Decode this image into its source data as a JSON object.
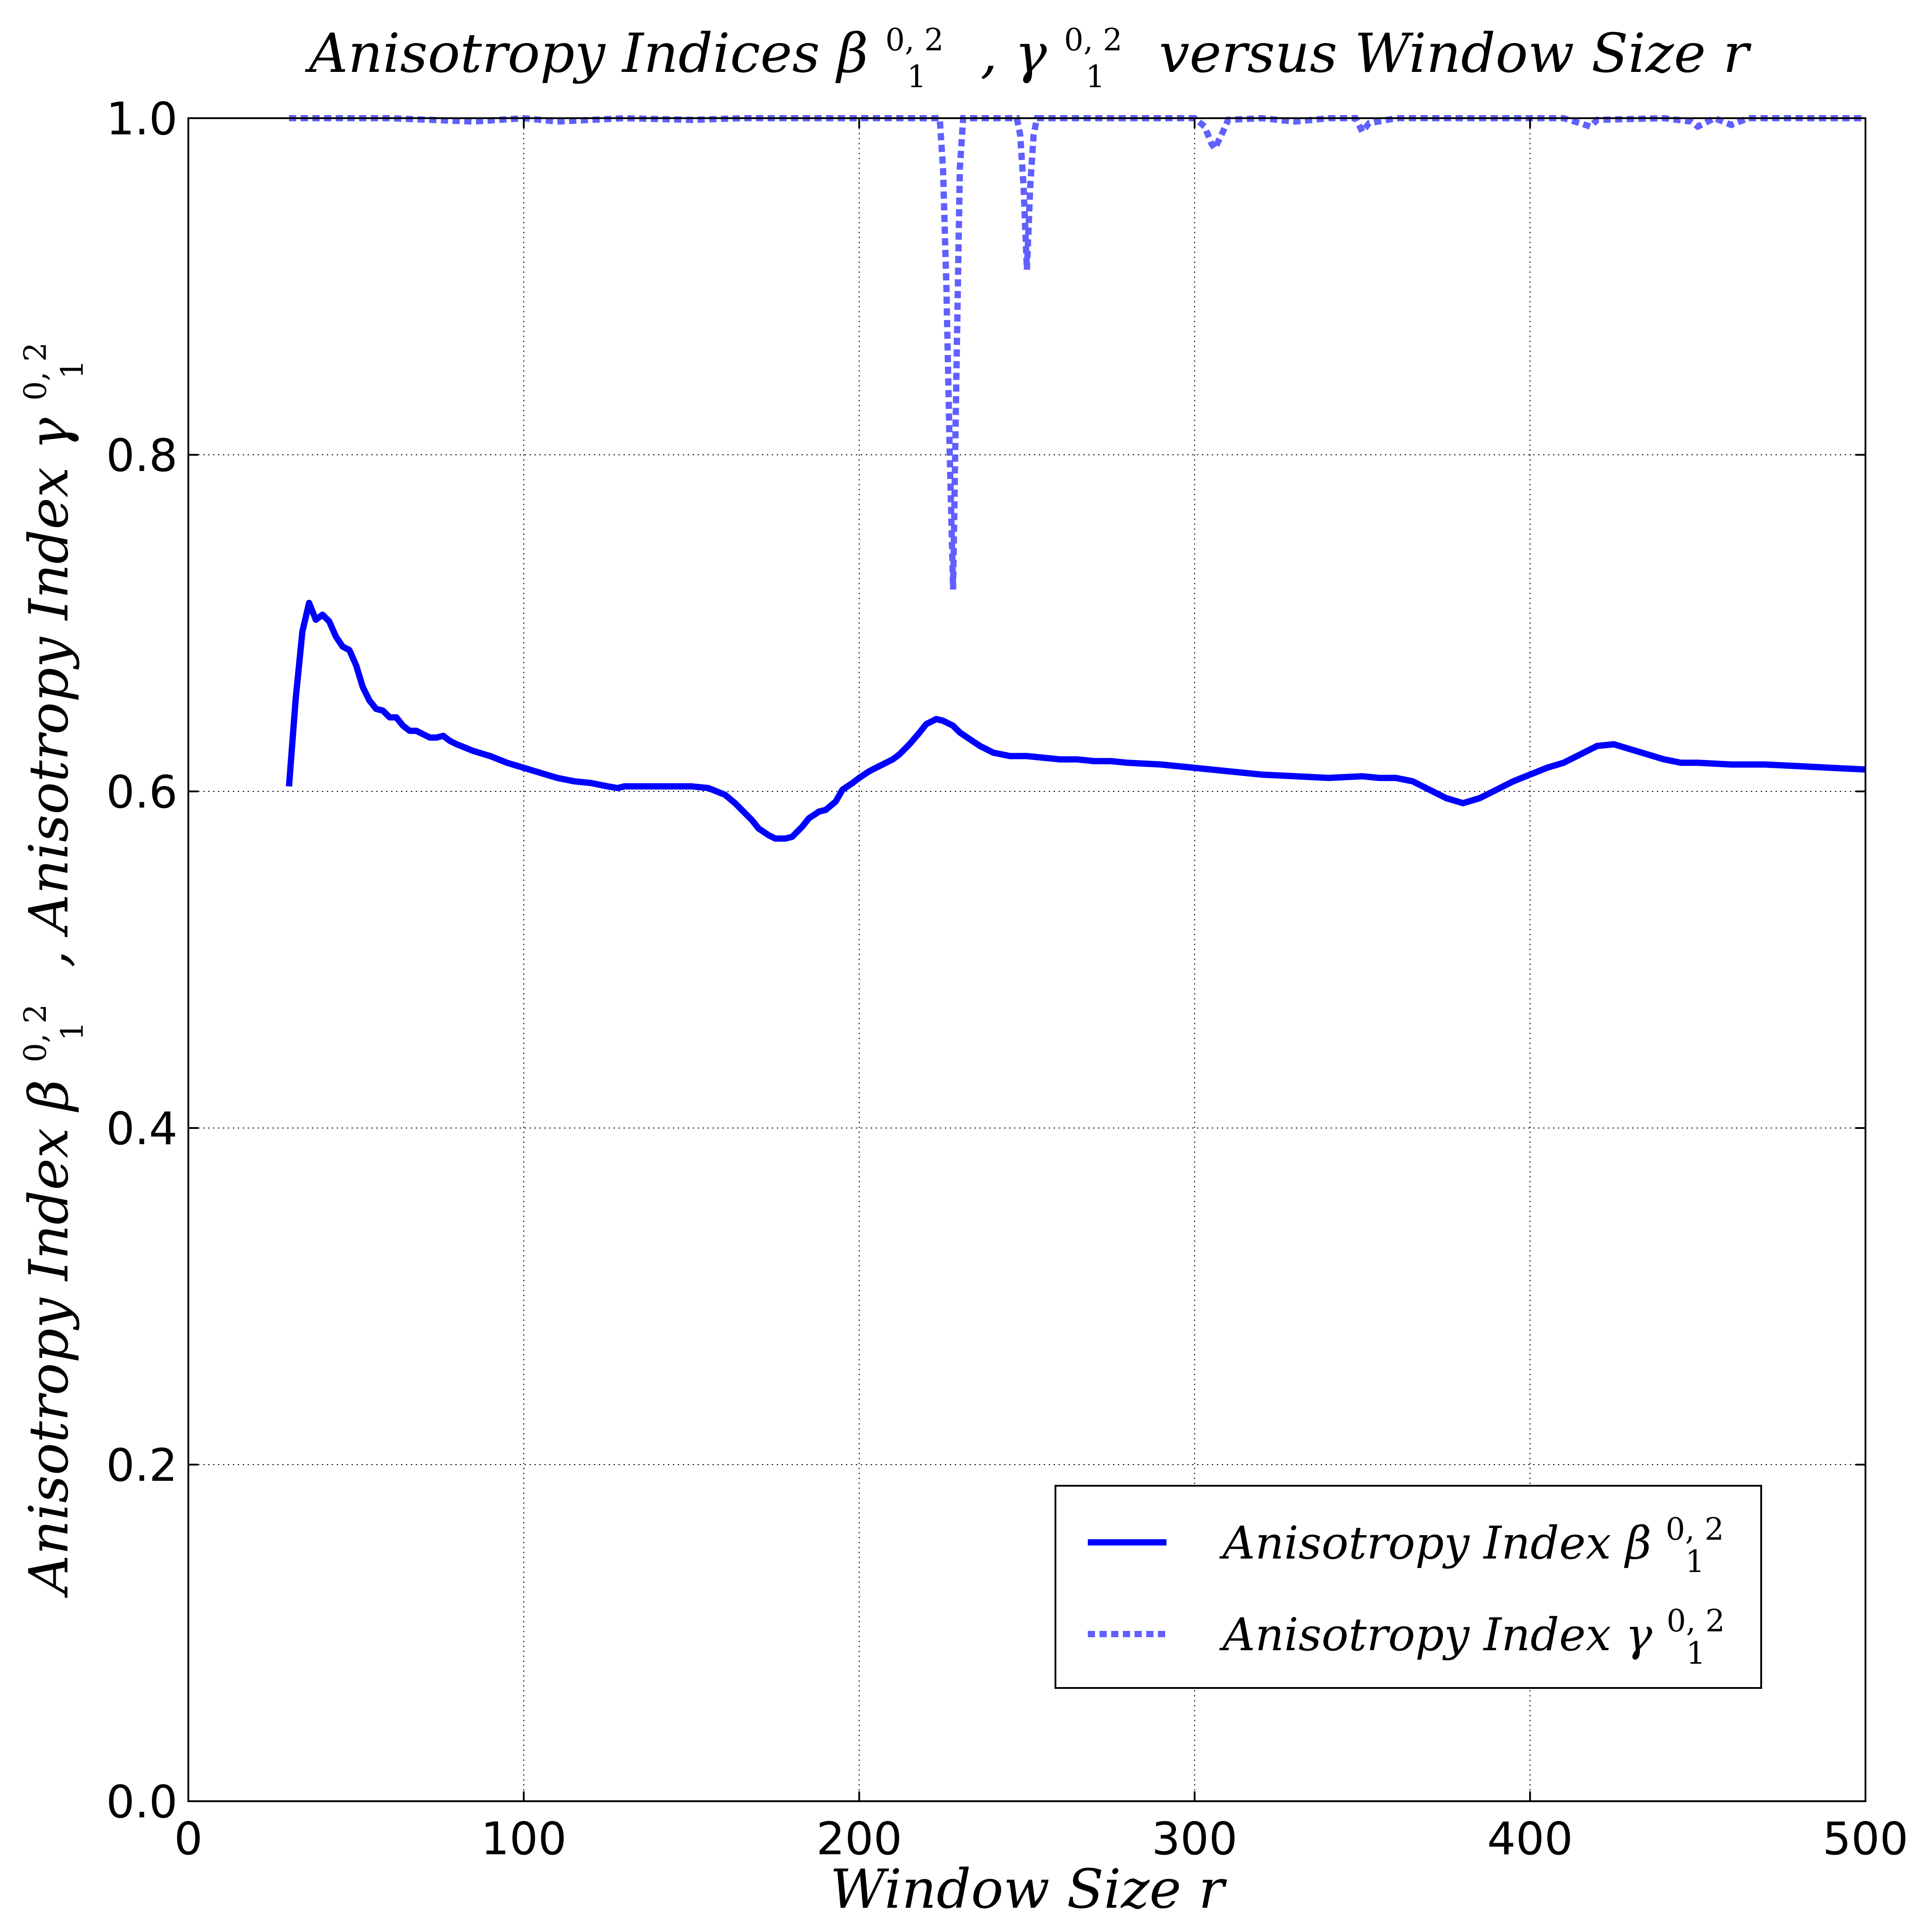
{
  "chart_data": {
    "type": "line",
    "title": {
      "prefix": "Anisotropy Indices ",
      "sym1": "β",
      "sup1": "0, 2",
      "sub1": "1",
      "sep": ", ",
      "sym2": "γ",
      "sup2": "0, 2",
      "sub2": "1",
      "suffix": " versus Window Size r"
    },
    "xlabel": "Window Size r",
    "ylabel": {
      "part1": "Anisotropy Index ",
      "sym1": "β",
      "sup1": "0, 2",
      "sub1": "1",
      "sep": ",  ",
      "part2": "Anisotropy Index ",
      "sym2": "γ",
      "sup2": "0, 2",
      "sub2": "1"
    },
    "xlim": [
      0,
      500
    ],
    "ylim": [
      0.0,
      1.0
    ],
    "xticks": [
      "0",
      "100",
      "200",
      "300",
      "400",
      "500"
    ],
    "yticks": [
      "0.0",
      "0.2",
      "0.4",
      "0.6",
      "0.8",
      "1.0"
    ],
    "grid": true,
    "legend_position": "lower-right",
    "series": [
      {
        "name": "Anisotropy Index β1^(0,2)",
        "legend": {
          "text": "Anisotropy Index ",
          "sym": "β",
          "sup": "0, 2",
          "sub": "1"
        },
        "style": "solid",
        "color": "#0000ff",
        "x": [
          30,
          32,
          34,
          36,
          38,
          40,
          42,
          44,
          46,
          48,
          50,
          52,
          54,
          56,
          58,
          60,
          62,
          64,
          66,
          68,
          70,
          72,
          74,
          76,
          78,
          80,
          85,
          90,
          95,
          100,
          105,
          110,
          115,
          120,
          125,
          128,
          130,
          135,
          140,
          145,
          150,
          155,
          160,
          163,
          165,
          168,
          170,
          173,
          175,
          178,
          180,
          183,
          185,
          188,
          190,
          193,
          195,
          198,
          200,
          203,
          206,
          208,
          210,
          212,
          215,
          218,
          220,
          223,
          225,
          228,
          230,
          233,
          236,
          240,
          245,
          250,
          255,
          260,
          265,
          270,
          275,
          280,
          290,
          300,
          310,
          320,
          330,
          340,
          350,
          355,
          360,
          365,
          370,
          375,
          380,
          385,
          390,
          395,
          400,
          405,
          410,
          415,
          420,
          425,
          430,
          435,
          440,
          445,
          450,
          460,
          470,
          480,
          490,
          500
        ],
        "values": [
          0.603,
          0.655,
          0.695,
          0.712,
          0.702,
          0.705,
          0.701,
          0.692,
          0.686,
          0.684,
          0.675,
          0.662,
          0.654,
          0.649,
          0.648,
          0.644,
          0.644,
          0.639,
          0.636,
          0.636,
          0.634,
          0.632,
          0.632,
          0.633,
          0.63,
          0.628,
          0.624,
          0.621,
          0.617,
          0.614,
          0.611,
          0.608,
          0.606,
          0.605,
          0.603,
          0.602,
          0.603,
          0.603,
          0.603,
          0.603,
          0.603,
          0.602,
          0.598,
          0.593,
          0.589,
          0.583,
          0.578,
          0.574,
          0.572,
          0.572,
          0.573,
          0.579,
          0.584,
          0.588,
          0.589,
          0.594,
          0.601,
          0.605,
          0.608,
          0.612,
          0.615,
          0.617,
          0.619,
          0.622,
          0.628,
          0.635,
          0.64,
          0.643,
          0.642,
          0.639,
          0.635,
          0.631,
          0.627,
          0.623,
          0.621,
          0.621,
          0.62,
          0.619,
          0.619,
          0.618,
          0.618,
          0.617,
          0.616,
          0.614,
          0.612,
          0.61,
          0.609,
          0.608,
          0.609,
          0.608,
          0.608,
          0.606,
          0.601,
          0.596,
          0.593,
          0.596,
          0.601,
          0.606,
          0.61,
          0.614,
          0.617,
          0.622,
          0.627,
          0.628,
          0.625,
          0.622,
          0.619,
          0.617,
          0.617,
          0.616,
          0.616,
          0.615,
          0.614,
          0.613
        ]
      },
      {
        "name": "Anisotropy Index γ1^(0,2)",
        "legend": {
          "text": "Anisotropy Index ",
          "sym": "γ",
          "sup": "0, 2",
          "sub": "1"
        },
        "style": "dashed",
        "color": "#6060ff",
        "x": [
          30,
          60,
          85,
          100,
          110,
          130,
          150,
          165,
          200,
          220,
          224,
          225,
          226,
          227,
          228,
          229,
          230,
          231,
          232,
          240,
          247,
          248,
          249,
          250,
          251,
          252,
          253,
          260,
          300,
          303,
          305,
          306,
          308,
          310,
          320,
          330,
          340,
          348,
          350,
          352,
          360,
          380,
          400,
          410,
          415,
          418,
          420,
          440,
          448,
          450,
          455,
          460,
          465,
          480,
          500
        ],
        "values": [
          1.0,
          1.0,
          0.998,
          1.0,
          0.998,
          1.0,
          0.999,
          1.0,
          1.0,
          1.0,
          1.0,
          0.97,
          0.9,
          0.8,
          0.72,
          0.85,
          0.97,
          1.0,
          1.0,
          1.0,
          1.0,
          0.99,
          0.96,
          0.91,
          0.96,
          0.99,
          1.0,
          1.0,
          1.0,
          0.995,
          0.985,
          0.982,
          0.99,
          0.999,
          1.0,
          0.998,
          1.0,
          1.0,
          0.992,
          0.997,
          1.0,
          1.0,
          1.0,
          1.0,
          0.997,
          0.995,
          0.999,
          1.0,
          0.998,
          0.995,
          1.0,
          0.996,
          1.0,
          1.0,
          1.0
        ]
      }
    ]
  }
}
